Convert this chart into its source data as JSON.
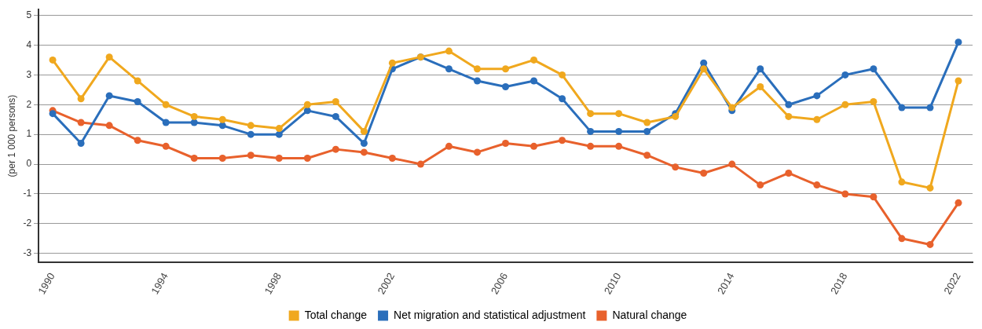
{
  "chart_data": {
    "type": "line",
    "ylabel": "(per 1 000 persons)",
    "categories": [
      "1990",
      null,
      null,
      null,
      "1994",
      null,
      null,
      null,
      "1998",
      null,
      null,
      null,
      "2002",
      null,
      null,
      null,
      "2006",
      null,
      null,
      null,
      "2010",
      null,
      null,
      null,
      "2014",
      null,
      null,
      null,
      "2018",
      null,
      null,
      null,
      "2022"
    ],
    "series": [
      {
        "name": "Total change",
        "color": "#f0a81e",
        "values": [
          3.5,
          2.2,
          3.6,
          2.8,
          2.0,
          1.6,
          1.5,
          1.3,
          1.2,
          2.0,
          2.1,
          1.1,
          3.4,
          3.6,
          3.8,
          3.2,
          3.2,
          3.5,
          3.0,
          1.7,
          1.7,
          1.4,
          1.6,
          3.2,
          1.9,
          2.6,
          1.6,
          1.5,
          2.0,
          2.1,
          -0.6,
          -0.8,
          2.8
        ]
      },
      {
        "name": "Net migration and statistical adjustment",
        "color": "#2a6ebb",
        "values": [
          1.7,
          0.7,
          2.3,
          2.1,
          1.4,
          1.4,
          1.3,
          1.0,
          1.0,
          1.8,
          1.6,
          0.7,
          3.2,
          3.6,
          3.2,
          2.8,
          2.6,
          2.8,
          2.2,
          1.1,
          1.1,
          1.1,
          1.7,
          3.4,
          1.8,
          3.2,
          2.0,
          2.3,
          3.0,
          3.2,
          1.9,
          1.9,
          4.1
        ]
      },
      {
        "name": "Natural change",
        "color": "#e8612c",
        "values": [
          1.8,
          1.4,
          1.3,
          0.8,
          0.6,
          0.2,
          0.2,
          0.3,
          0.2,
          0.2,
          0.5,
          0.4,
          0.2,
          0.0,
          0.6,
          0.4,
          0.7,
          0.6,
          0.8,
          0.6,
          0.6,
          0.3,
          -0.1,
          -0.3,
          0.0,
          -0.7,
          -0.3,
          -0.7,
          -1.0,
          -1.1,
          -2.5,
          -2.7,
          -1.3
        ]
      }
    ],
    "ylim": [
      -3.3,
      5.2
    ],
    "yticks": [
      -3,
      -2,
      -1,
      0,
      1,
      2,
      3,
      4,
      5
    ],
    "grid": "y",
    "legend": "bottom",
    "marker": "circle",
    "line_style": "solid"
  }
}
